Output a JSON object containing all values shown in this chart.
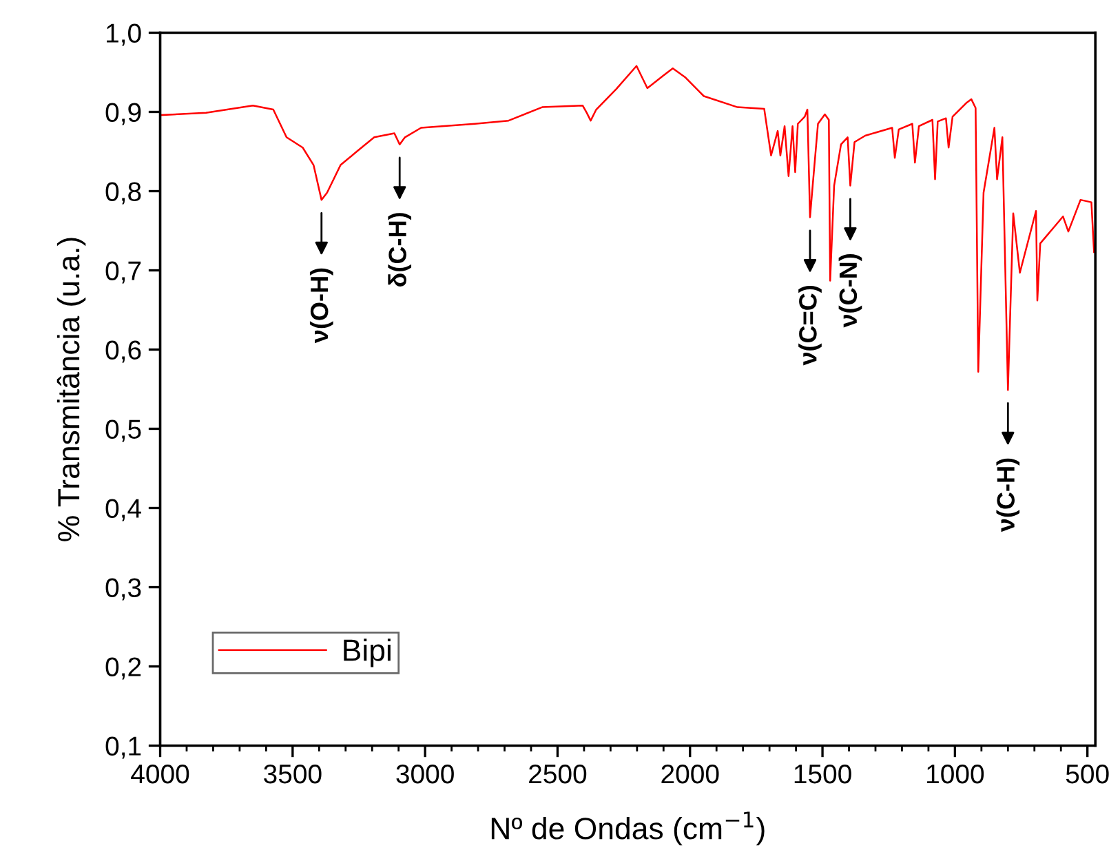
{
  "chart_data": {
    "type": "line",
    "xlabel": "Nº de Ondas (cm$^{−1}$)",
    "ylabel": "% Transmitância (u.a.)",
    "xlim": [
      4000,
      470
    ],
    "ylim": [
      0.1,
      1.0
    ],
    "xticks": [
      4000,
      3500,
      3000,
      2500,
      2000,
      1500,
      1000,
      500
    ],
    "yticks": [
      {
        "value": 0.1,
        "label": "0,1"
      },
      {
        "value": 0.2,
        "label": "0,2"
      },
      {
        "value": 0.3,
        "label": "0,3"
      },
      {
        "value": 0.4,
        "label": "0,4"
      },
      {
        "value": 0.5,
        "label": "0,5"
      },
      {
        "value": 0.6,
        "label": "0,6"
      },
      {
        "value": 0.7,
        "label": "0,7"
      },
      {
        "value": 0.8,
        "label": "0,8"
      },
      {
        "value": 0.9,
        "label": "0,9"
      },
      {
        "value": 1.0,
        "label": "1,0"
      }
    ],
    "grid": false,
    "legend": "bottom left",
    "marker": "none",
    "line_style": "solid",
    "series": [
      {
        "name": "Bipi",
        "color": "#ff0000",
        "x": [
          4000,
          3827,
          3650,
          3573,
          3523,
          3462,
          3421,
          3391,
          3370,
          3319,
          3258,
          3192,
          3116,
          3096,
          3076,
          3015,
          2812,
          2685,
          2558,
          2405,
          2390,
          2375,
          2354,
          2278,
          2202,
          2161,
          2100,
          2065,
          2019,
          1948,
          1821,
          1720,
          1694,
          1669,
          1659,
          1643,
          1628,
          1613,
          1603,
          1593,
          1567,
          1557,
          1547,
          1537,
          1517,
          1491,
          1476,
          1471,
          1456,
          1430,
          1405,
          1395,
          1379,
          1339,
          1288,
          1237,
          1227,
          1212,
          1161,
          1151,
          1136,
          1085,
          1075,
          1065,
          1034,
          1024,
          1009,
          958,
          938,
          922,
          912,
          892,
          851,
          841,
          821,
          800,
          780,
          755,
          694,
          689,
          678,
          592,
          572,
          526,
          485,
          475
        ],
        "values": [
          0.896,
          0.899,
          0.908,
          0.903,
          0.868,
          0.855,
          0.833,
          0.789,
          0.798,
          0.833,
          0.85,
          0.868,
          0.873,
          0.859,
          0.868,
          0.88,
          0.885,
          0.889,
          0.906,
          0.908,
          0.899,
          0.889,
          0.903,
          0.929,
          0.958,
          0.93,
          0.946,
          0.955,
          0.944,
          0.92,
          0.906,
          0.904,
          0.845,
          0.876,
          0.845,
          0.882,
          0.819,
          0.882,
          0.824,
          0.885,
          0.894,
          0.903,
          0.767,
          0.807,
          0.885,
          0.897,
          0.89,
          0.687,
          0.807,
          0.859,
          0.868,
          0.807,
          0.862,
          0.87,
          0.875,
          0.88,
          0.842,
          0.878,
          0.885,
          0.836,
          0.882,
          0.89,
          0.815,
          0.888,
          0.892,
          0.855,
          0.894,
          0.911,
          0.916,
          0.905,
          0.572,
          0.798,
          0.88,
          0.815,
          0.868,
          0.549,
          0.772,
          0.697,
          0.775,
          0.662,
          0.734,
          0.768,
          0.749,
          0.789,
          0.786,
          0.723
        ]
      }
    ],
    "annotations": [
      {
        "text": "ν(O-H)",
        "x": 3391,
        "y": 0.789
      },
      {
        "text": "δ(C-H)",
        "x": 3096,
        "y": 0.859
      },
      {
        "text": "ν(C=C)",
        "x": 1547,
        "y": 0.767
      },
      {
        "text": "ν(C-N)",
        "x": 1395,
        "y": 0.807
      },
      {
        "text": "ν(C-H)",
        "x": 800,
        "y": 0.549
      }
    ]
  }
}
